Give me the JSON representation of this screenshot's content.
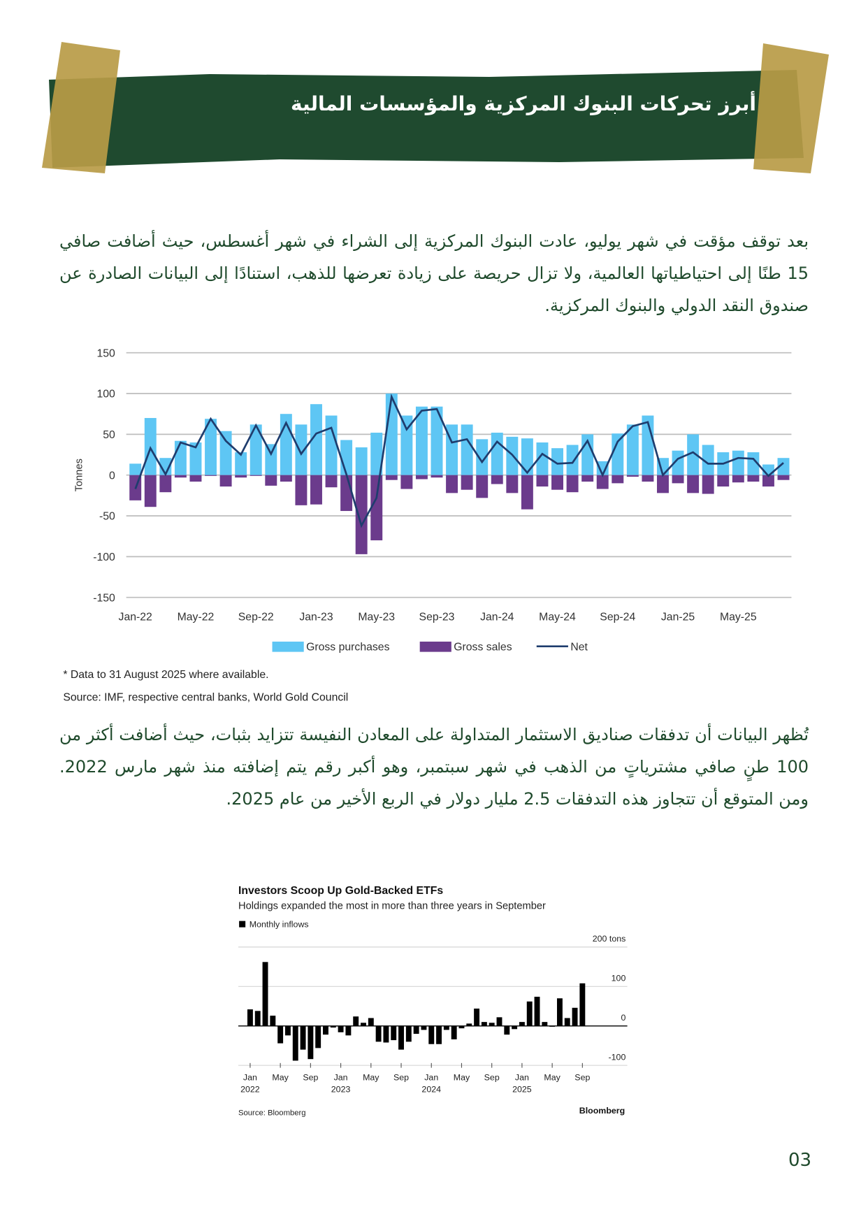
{
  "header": {
    "title": "أبرز تحركات البنوك المركزية والمؤسسات المالية"
  },
  "paragraphs": [
    "بعد توقف مؤقت في شهر يوليو، عادت البنوك المركزية إلى الشراء في شهر أغسطس، حيث أضافت صافي 15 طنًا إلى احتياطياتها العالمية، ولا تزال حريصة على زيادة تعرضها للذهب، استنادًا إلى البيانات الصادرة عن صندوق النقد الدولي والبنوك المركزية.",
    "تُظهر البيانات أن تدفقات صناديق الاستثمار المتداولة على المعادن النفيسة تتزايد بثبات، حيث أضافت أكثر من 100 طنٍ صافي مشترياتٍ من الذهب في شهر سبتمبر، وهو أكبر رقم يتم إضافته منذ شهر مارس 2022. ومن المتوقع أن تتجاوز هذه التدفقات 2.5 مليار دولار في الربع الأخير من عام 2025."
  ],
  "page_number": "03",
  "chart_data": [
    {
      "type": "bar",
      "y_label": "Tonnes",
      "categories": [
        "Jan-22",
        null,
        null,
        null,
        "May-22",
        null,
        null,
        null,
        "Sep-22",
        null,
        null,
        null,
        "Jan-23",
        null,
        null,
        null,
        "May-23",
        null,
        null,
        null,
        "Sep-23",
        null,
        null,
        null,
        "Jan-24",
        null,
        null,
        null,
        "May-24",
        null,
        null,
        null,
        "Sep-24",
        null,
        null,
        null,
        "Jan-25",
        null,
        null,
        null,
        "May-25",
        null,
        null,
        null
      ],
      "series": [
        {
          "name": "Gross purchases",
          "type": "bar",
          "color": "#5ec6f4",
          "values": [
            14,
            70,
            21,
            42,
            40,
            69,
            54,
            28,
            62,
            38,
            75,
            62,
            87,
            73,
            43,
            34,
            52,
            100,
            73,
            84,
            84,
            62,
            62,
            44,
            52,
            47,
            45,
            40,
            33,
            37,
            50,
            17,
            51,
            62,
            73,
            21,
            30,
            50,
            37,
            28,
            30,
            28,
            13,
            21
          ]
        },
        {
          "name": "Gross sales",
          "type": "bar",
          "color": "#6b3b8c",
          "values": [
            -31,
            -39,
            -21,
            -3,
            -8,
            -1,
            -14,
            -3,
            -1,
            -13,
            -8,
            -37,
            -36,
            -15,
            -44,
            -97,
            -80,
            -6,
            -17,
            -5,
            -3,
            -22,
            -18,
            -28,
            -11,
            -22,
            -42,
            -14,
            -18,
            -21,
            -8,
            -17,
            -10,
            -2,
            -8,
            -22,
            -10,
            -22,
            -23,
            -14,
            -9,
            -8,
            -14,
            -6
          ]
        },
        {
          "name": "Net",
          "type": "line",
          "color": "#1f3d6e",
          "values": [
            -17,
            33,
            1,
            40,
            34,
            69,
            42,
            25,
            61,
            26,
            64,
            26,
            51,
            58,
            1,
            -62,
            -28,
            96,
            56,
            79,
            81,
            40,
            44,
            16,
            41,
            25,
            3,
            26,
            14,
            15,
            42,
            0,
            41,
            60,
            65,
            0,
            20,
            28,
            14,
            14,
            21,
            20,
            -1,
            15
          ]
        }
      ],
      "ylim": [
        -150,
        150
      ],
      "yticks": [
        150,
        100,
        50,
        0,
        -50,
        -100,
        -150
      ],
      "grid": true,
      "note": "* Data to 31 August 2025 where available.",
      "source": "Source: IMF, respective central banks, World Gold Council"
    },
    {
      "type": "bar",
      "title": "Investors Scoop Up Gold-Backed ETFs",
      "subtitle": "Holdings expanded the most in more than three years in September",
      "legend": "Monthly inflows",
      "color": "#000000",
      "categories": [
        "Jan",
        null,
        null,
        null,
        "May",
        null,
        null,
        null,
        "Sep",
        null,
        null,
        null,
        "Jan",
        null,
        null,
        null,
        "May",
        null,
        null,
        null,
        "Sep",
        null,
        null,
        null,
        "Jan",
        null,
        null,
        null,
        "May",
        null,
        null,
        null,
        "Sep",
        null,
        null,
        null,
        "Jan",
        null,
        null,
        null,
        "May",
        null,
        null,
        null,
        "Sep"
      ],
      "years": [
        "2022",
        null,
        null,
        null,
        null,
        null,
        null,
        null,
        null,
        null,
        null,
        null,
        "2023",
        null,
        null,
        null,
        null,
        null,
        null,
        null,
        null,
        null,
        null,
        null,
        "2024",
        null,
        null,
        null,
        null,
        null,
        null,
        null,
        null,
        null,
        null,
        null,
        "2025",
        null,
        null,
        null,
        null,
        null,
        null,
        null,
        null
      ],
      "values": [
        42,
        38,
        162,
        26,
        -44,
        -24,
        -88,
        -60,
        -84,
        -56,
        -22,
        -4,
        -16,
        -24,
        24,
        8,
        20,
        -40,
        -42,
        -36,
        -60,
        -40,
        -20,
        -10,
        -46,
        -46,
        -10,
        -34,
        -6,
        6,
        44,
        10,
        8,
        22,
        -22,
        -8,
        10,
        62,
        74,
        10,
        -2,
        70,
        20,
        46,
        108
      ],
      "ylim": [
        -100,
        200
      ],
      "yticks": [
        {
          "value": 200,
          "label": "200 tons"
        },
        100,
        0,
        -100
      ],
      "grid": true,
      "source": "Source: Bloomberg",
      "brand": "Bloomberg"
    }
  ]
}
